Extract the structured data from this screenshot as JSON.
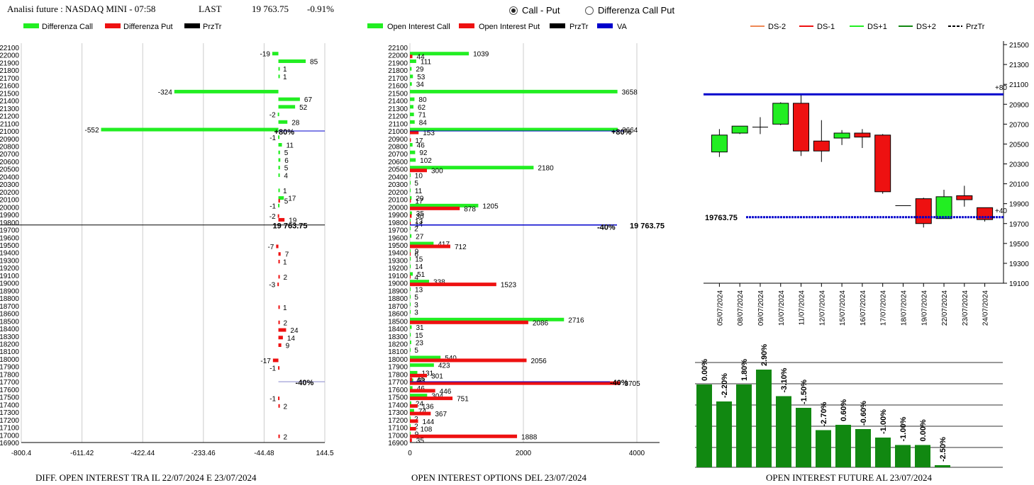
{
  "header": {
    "title": "Analisi future : NASDAQ MINI - 07:58",
    "last_label": "LAST",
    "last_value": "19 763.75",
    "change": "-0.91%"
  },
  "options": {
    "call_put": "Call - Put",
    "diff": "Differenza Call Put",
    "selected": "call_put"
  },
  "footers": {
    "left": "DIFF. OPEN INTEREST TRA IL 22/07/2024 E 23/07/2024",
    "middle": "OPEN INTEREST OPTIONS DEL 23/07/2024",
    "right": "OPEN INTEREST FUTURE AL 23/07/2024"
  },
  "colors": {
    "call": "#22ee22",
    "put": "#ee1111",
    "przTr": "#000000",
    "va": "#0000cc",
    "up": "#22ee22",
    "down": "#ee1111",
    "oi": "#118811"
  },
  "chart_data": [
    {
      "type": "bar",
      "orientation": "horizontal",
      "legend": [
        "Differenza Call",
        "Differenza Put",
        "PrzTr"
      ],
      "strikes": [
        "22100",
        "22000",
        "21900",
        "21800",
        "21700",
        "21600",
        "21500",
        "21400",
        "21300",
        "21200",
        "21100",
        "21000",
        "20900",
        "20800",
        "20700",
        "20600",
        "20500",
        "20400",
        "20300",
        "20200",
        "20100",
        "20000",
        "19900",
        "19800",
        "19700",
        "19600",
        "19500",
        "19400",
        "19300",
        "19200",
        "19100",
        "19000",
        "18900",
        "18800",
        "18700",
        "18600",
        "18500",
        "18400",
        "18300",
        "18200",
        "18100",
        "18000",
        "17900",
        "17800",
        "17700",
        "17600",
        "17500",
        "17400",
        "17300",
        "17200",
        "17100",
        "17000",
        "16900"
      ],
      "xticks": [
        "-800.4",
        "-611.42",
        "-422.44",
        "-233.46",
        "-44.48",
        "144.5"
      ],
      "xlim": [
        -800.4,
        144.5
      ],
      "series": [
        {
          "name": "Differenza Call",
          "points": [
            [
              22000,
              -19
            ],
            [
              21900,
              85
            ],
            [
              21800,
              1
            ],
            [
              21700,
              1
            ],
            [
              21500,
              -324
            ],
            [
              21400,
              67
            ],
            [
              21300,
              52
            ],
            [
              21200,
              -2
            ],
            [
              21100,
              28
            ],
            [
              21000,
              -552
            ],
            [
              20900,
              -1
            ],
            [
              20800,
              11
            ],
            [
              20700,
              5
            ],
            [
              20600,
              6
            ],
            [
              20500,
              5
            ],
            [
              20400,
              4
            ],
            [
              20200,
              1
            ],
            [
              20100,
              17
            ],
            [
              20000,
              -1
            ]
          ]
        },
        {
          "name": "Differenza Put",
          "points": [
            [
              20100,
              5
            ],
            [
              19900,
              -2
            ],
            [
              19850,
              19
            ],
            [
              19500,
              -7
            ],
            [
              19400,
              7
            ],
            [
              19300,
              1
            ],
            [
              19100,
              2
            ],
            [
              19000,
              -3
            ],
            [
              18700,
              1
            ],
            [
              18500,
              2
            ],
            [
              18400,
              24
            ],
            [
              18300,
              14
            ],
            [
              18200,
              9
            ],
            [
              18000,
              -17
            ],
            [
              17900,
              -1
            ],
            [
              17500,
              -1
            ],
            [
              17400,
              2
            ],
            [
              17000,
              2
            ]
          ]
        }
      ],
      "annotations": [
        {
          "text": "+80%",
          "at": 21000
        },
        {
          "text": "19 763.75",
          "at": 19763.75
        },
        {
          "text": "-40%",
          "at": 17700
        }
      ]
    },
    {
      "type": "bar",
      "orientation": "horizontal",
      "legend": [
        "Open Interest Call",
        "Open Interest Put",
        "PrzTr",
        "VA"
      ],
      "xticks": [
        "0",
        "2000",
        "4000"
      ],
      "xlim": [
        0,
        4400
      ],
      "series": [
        {
          "name": "Open Interest Call",
          "points": [
            [
              22000,
              1039
            ],
            [
              21900,
              111
            ],
            [
              21800,
              29
            ],
            [
              21700,
              53
            ],
            [
              21600,
              34
            ],
            [
              21500,
              3658
            ],
            [
              21400,
              80
            ],
            [
              21300,
              62
            ],
            [
              21200,
              71
            ],
            [
              21100,
              84
            ],
            [
              21000,
              3664
            ],
            [
              20800,
              46
            ],
            [
              20700,
              92
            ],
            [
              20600,
              102
            ],
            [
              20500,
              2180
            ],
            [
              20400,
              10
            ],
            [
              20300,
              5
            ],
            [
              20200,
              11
            ],
            [
              20100,
              29
            ],
            [
              20000,
              1205
            ],
            [
              19900,
              35
            ],
            [
              19800,
              13
            ],
            [
              19700,
              2
            ],
            [
              19600,
              27
            ],
            [
              19500,
              417
            ],
            [
              19400,
              9
            ],
            [
              19300,
              15
            ],
            [
              19200,
              14
            ],
            [
              19100,
              51
            ],
            [
              19000,
              338
            ],
            [
              18900,
              13
            ],
            [
              18800,
              5
            ],
            [
              18700,
              3
            ],
            [
              18600,
              3
            ],
            [
              18500,
              2716
            ],
            [
              18400,
              31
            ],
            [
              18300,
              15
            ],
            [
              18200,
              23
            ],
            [
              18100,
              5
            ],
            [
              18000,
              540
            ],
            [
              17900,
              423
            ],
            [
              17800,
              131
            ],
            [
              17700,
              58
            ],
            [
              17600,
              46
            ],
            [
              17500,
              304
            ],
            [
              17400,
              24
            ],
            [
              17300,
              74
            ],
            [
              17200,
              2
            ],
            [
              17100,
              2
            ],
            [
              17000,
              9
            ]
          ]
        },
        {
          "name": "Open Interest Put",
          "points": [
            [
              22000,
              44
            ],
            [
              21000,
              153
            ],
            [
              20900,
              17
            ],
            [
              20500,
              300
            ],
            [
              20100,
              17
            ],
            [
              20000,
              878
            ],
            [
              19900,
              30
            ],
            [
              19800,
              14
            ],
            [
              19500,
              712
            ],
            [
              19400,
              6
            ],
            [
              19100,
              4
            ],
            [
              19000,
              1523
            ],
            [
              18500,
              2086
            ],
            [
              18000,
              2056
            ],
            [
              17800,
              301
            ],
            [
              17750,
              40
            ],
            [
              17700,
              3705
            ],
            [
              17600,
              446
            ],
            [
              17500,
              751
            ],
            [
              17400,
              136
            ],
            [
              17300,
              367
            ],
            [
              17200,
              144
            ],
            [
              17100,
              108
            ],
            [
              17000,
              1888
            ],
            [
              16950,
              35
            ]
          ]
        }
      ],
      "annotations": [
        {
          "text": "+80%",
          "at": 21000
        },
        {
          "text": "19 763.75",
          "at": 19763.75
        },
        {
          "text": "-40%",
          "at": 17700
        }
      ]
    },
    {
      "type": "candlestick",
      "legend": [
        "DS-2",
        "DS-1",
        "DS+1",
        "DS+2",
        "PrzTr"
      ],
      "dates": [
        "05/07/2024",
        "08/07/2024",
        "09/07/2024",
        "10/07/2024",
        "11/07/2024",
        "12/07/2024",
        "15/07/2024",
        "16/07/2024",
        "17/07/2024",
        "18/07/2024",
        "19/07/2024",
        "22/07/2024",
        "23/07/2024",
        "24/07/2024"
      ],
      "yticks": [
        "21500",
        "21300",
        "21100",
        "20900",
        "20700",
        "20500",
        "20300",
        "20100",
        "19900",
        "19700",
        "19500",
        "19300",
        "19100"
      ],
      "ylim": [
        19100,
        21500
      ],
      "candles": [
        {
          "o": 20420,
          "c": 20590,
          "h": 20650,
          "l": 20370
        },
        {
          "o": 20610,
          "c": 20680,
          "h": 20680,
          "l": 20600
        },
        {
          "o": 20670,
          "c": 20670,
          "h": 20770,
          "l": 20600
        },
        {
          "o": 20700,
          "c": 20910,
          "h": 20920,
          "l": 20690
        },
        {
          "o": 20910,
          "c": 20430,
          "h": 21000,
          "l": 20380
        },
        {
          "o": 20530,
          "c": 20430,
          "h": 20740,
          "l": 20320
        },
        {
          "o": 20560,
          "c": 20610,
          "h": 20640,
          "l": 20490
        },
        {
          "o": 20610,
          "c": 20570,
          "h": 20650,
          "l": 20460
        },
        {
          "o": 20590,
          "c": 20020,
          "h": 20600,
          "l": 20000
        },
        {
          "o": 19880,
          "c": 19880,
          "h": 19880,
          "l": 19880
        },
        {
          "o": 19950,
          "c": 19700,
          "h": 19960,
          "l": 19660
        },
        {
          "o": 19750,
          "c": 19970,
          "h": 20040,
          "l": 19750
        },
        {
          "o": 19980,
          "c": 19940,
          "h": 20080,
          "l": 19870
        },
        {
          "o": 19860,
          "c": 19740,
          "h": 19860,
          "l": 19720
        }
      ],
      "lines": [
        {
          "name": "VA high",
          "value": 21000,
          "label": "+80"
        },
        {
          "name": "PrzTr",
          "value": 19763.75,
          "label": "19763.75"
        },
        {
          "name": "low",
          "value": 19760,
          "label": "+40"
        }
      ]
    },
    {
      "type": "bar",
      "values": [
        0.78,
        0.62,
        0.78,
        0.92,
        0.67,
        0.56,
        0.35,
        0.4,
        0.36,
        0.28,
        0.21,
        0.21,
        0.02
      ],
      "labels": [
        "0.00%",
        "-2.20%",
        "1.80%",
        "2.90%",
        "-3.10%",
        "-1.50%",
        "-2.70%",
        "0.60%",
        "-0.60%",
        "-1.00%",
        "-1.00%",
        "0.00%",
        "-2.50%"
      ]
    }
  ]
}
